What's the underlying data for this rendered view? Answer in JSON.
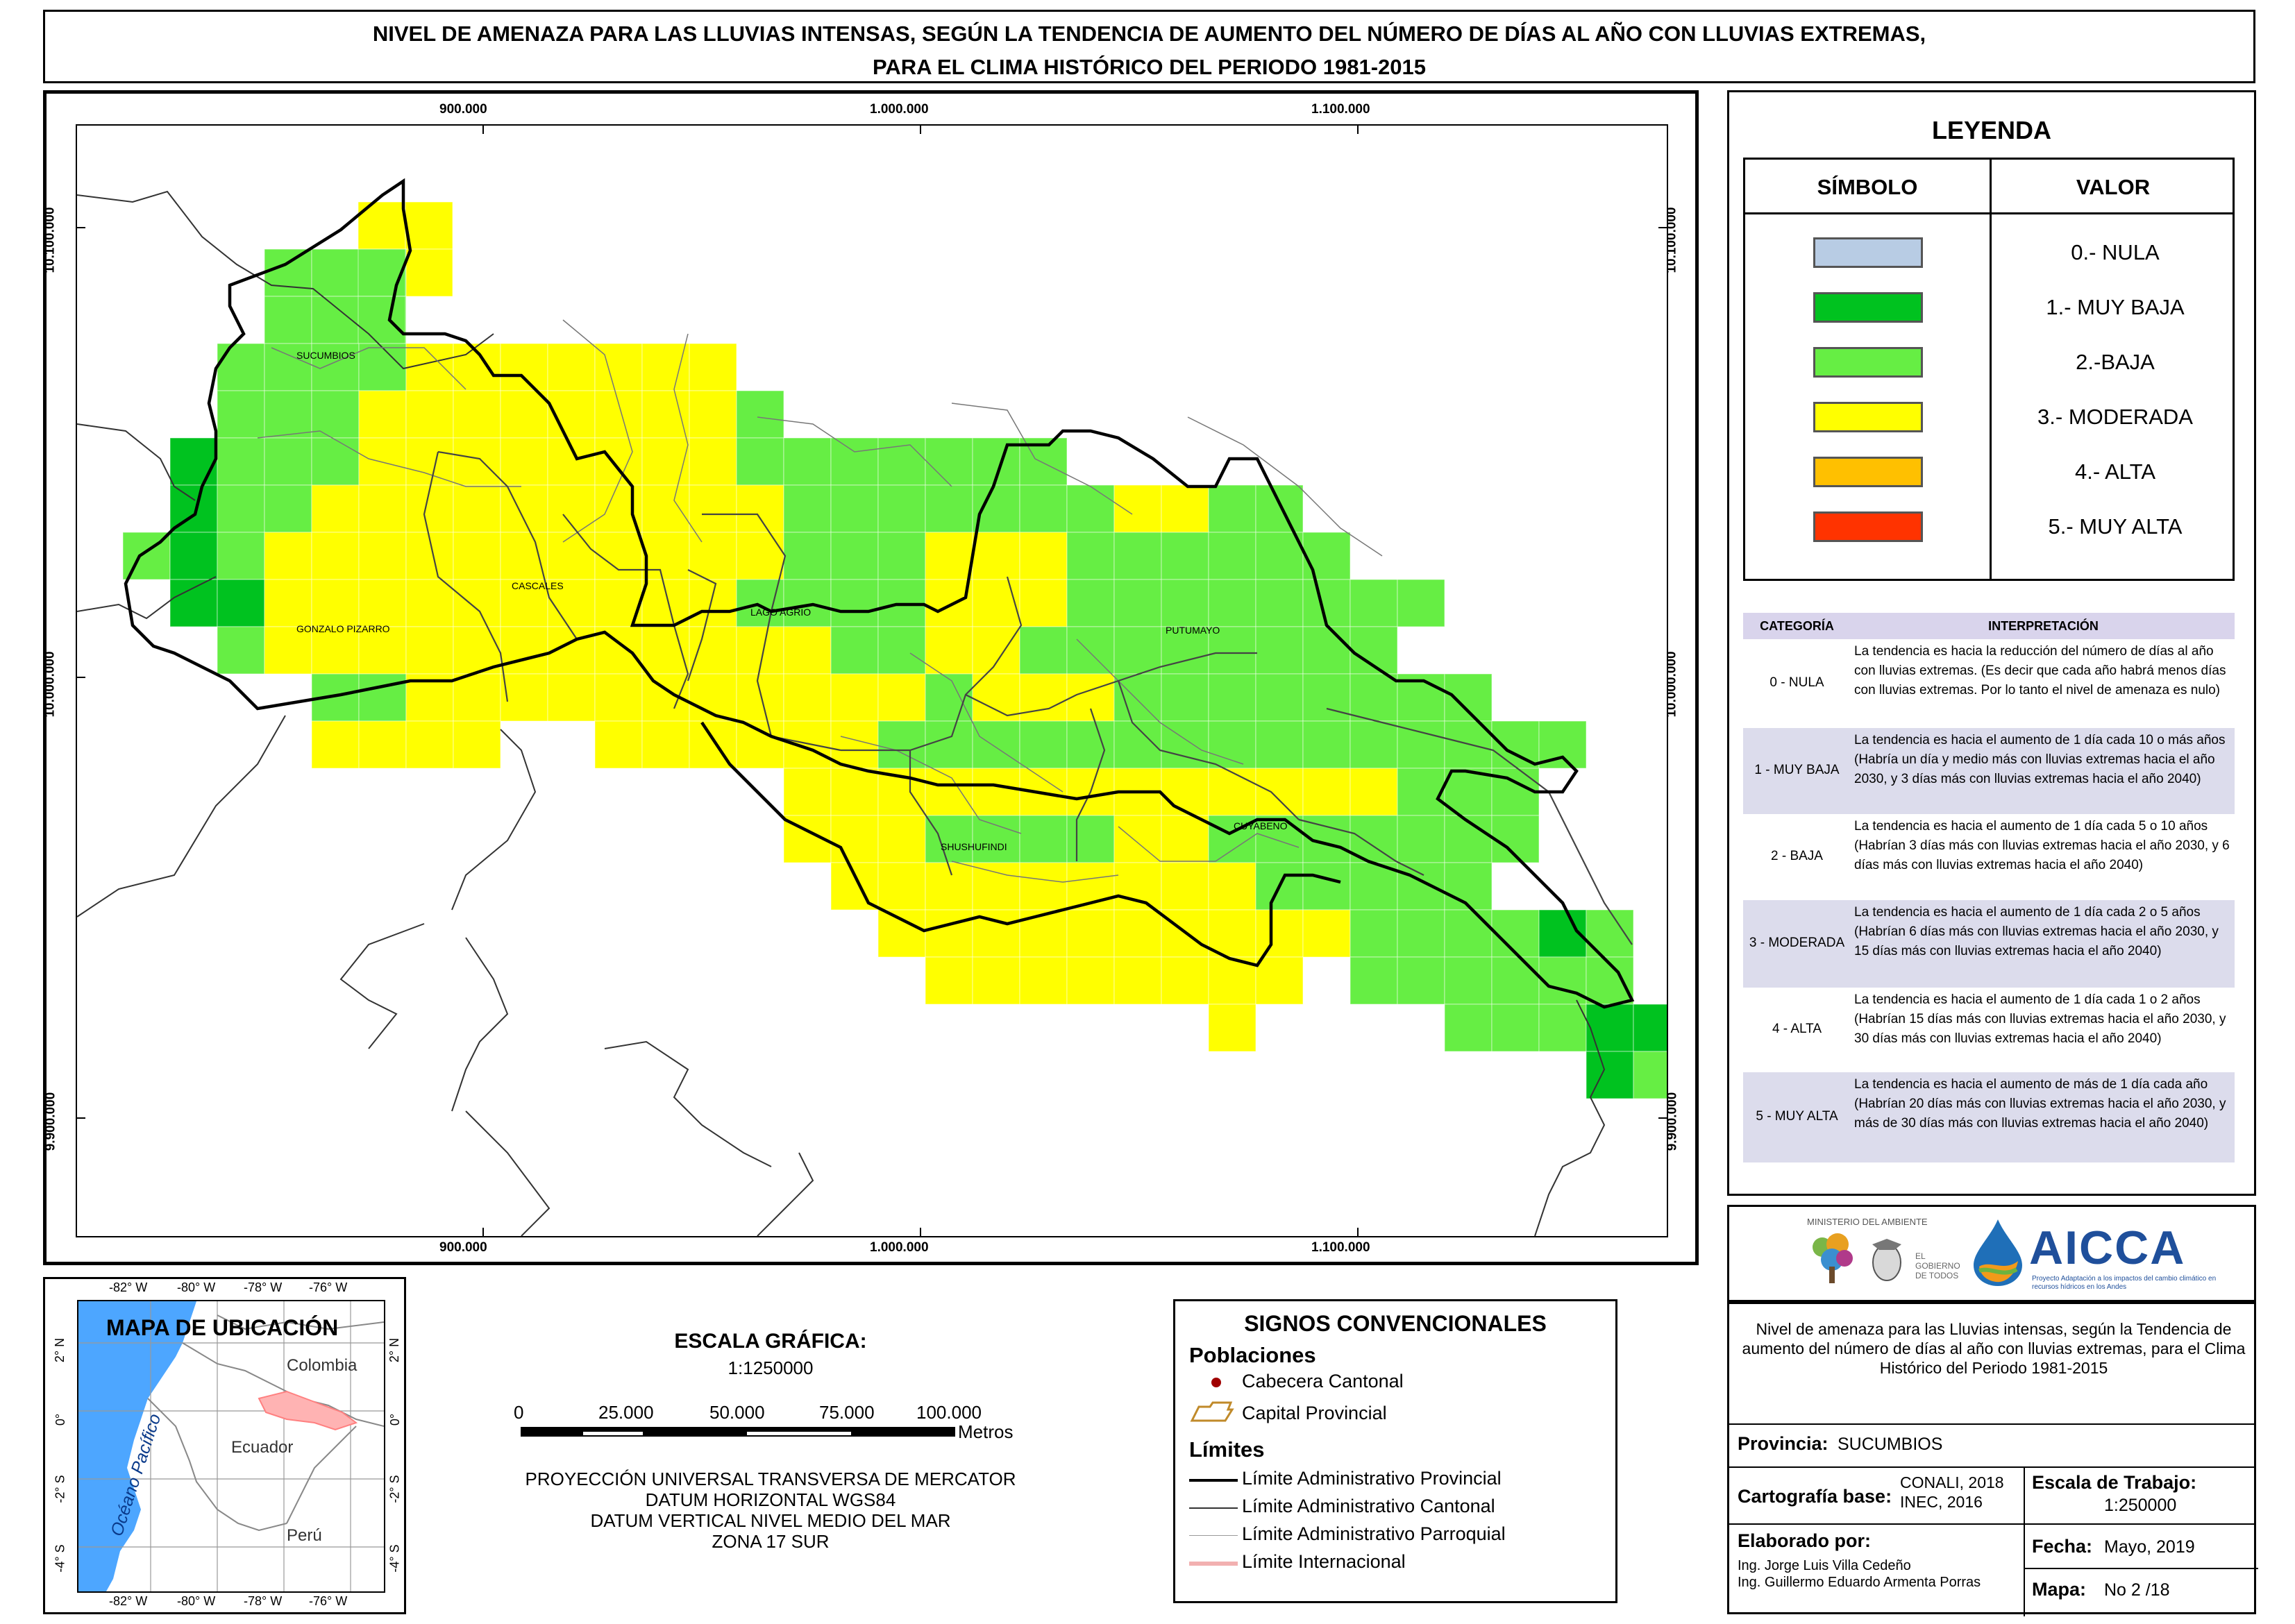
{
  "title": {
    "line1": "NIVEL DE AMENAZA PARA LAS LLUVIAS INTENSAS, SEGÚN LA TENDENCIA DE AUMENTO DEL NÚMERO DE DÍAS AL AÑO CON LLUVIAS EXTREMAS,",
    "line2": "PARA EL CLIMA HISTÓRICO DEL PERIODO 1981-2015"
  },
  "map": {
    "x_ticks": [
      "900.000",
      "1.000.000",
      "1.100.000"
    ],
    "y_ticks": [
      "10.100.000",
      "10.000.000",
      "9.900.000"
    ],
    "place_labels": [
      "SUCUMBIOS",
      "GONZALO PIZARRO",
      "CASCALES",
      "LAGO AGRIO",
      "PUTUMAYO",
      "SHUSHUFINDI",
      "CUYABENO"
    ]
  },
  "legend": {
    "title": "LEYENDA",
    "col_symbol": "SÍMBOLO",
    "col_value": "VALOR",
    "items": [
      {
        "label": "0.- NULA",
        "color": "#b8cce4"
      },
      {
        "label": "1.- MUY BAJA",
        "color": "#00c21f"
      },
      {
        "label": "2.-BAJA",
        "color": "#66ee44"
      },
      {
        "label": "3.- MODERADA",
        "color": "#ffff00"
      },
      {
        "label": "4.- ALTA",
        "color": "#ffc000"
      },
      {
        "label": "5.- MUY ALTA",
        "color": "#ff3300"
      }
    ],
    "interp_header": {
      "cat": "CATEGORÍA",
      "txt": "INTERPRETACIÓN"
    },
    "interp": [
      {
        "cat": "0 - NULA",
        "txt": "La tendencia es hacia la reducción del número de días al año con lluvias extremas. (Es decir que cada año habrá menos días con lluvias extremas. Por lo tanto el nivel de amenaza es nulo)"
      },
      {
        "cat": "1 - MUY BAJA",
        "txt": "La tendencia es hacia el aumento de 1 día cada 10 o más años (Habría un día y medio más con lluvias extremas hacia el año 2030, y 3 días más con lluvias extremas hacia el año 2040)"
      },
      {
        "cat": "2 - BAJA",
        "txt": "La tendencia es hacia el aumento de 1 día cada 5 o 10 años (Habrían 3 días más con lluvias extremas hacia el año 2030, y 6 días más con lluvias extremas hacia el año 2040)"
      },
      {
        "cat": "3 - MODERADA",
        "txt": "La tendencia es hacia el aumento de 1 día cada 2 o 5 años (Habrían 6 días más con lluvias extremas hacia el año 2030, y 15 días más con lluvias extremas hacia el año 2040)"
      },
      {
        "cat": "4 - ALTA",
        "txt": "La tendencia es hacia el aumento de 1 día cada 1 o 2 años (Habrían 15 días más con lluvias extremas hacia el año 2030, y 30 días más con lluvias extremas hacia el año 2040)"
      },
      {
        "cat": "5 - MUY ALTA",
        "txt": "La tendencia es hacia el aumento de más de 1 día cada año (Habrían 20 días más con lluvias extremas hacia el año 2030, y más de 30 días más con lluvias extremas hacia el año 2040)"
      }
    ]
  },
  "location_map": {
    "title": "MAPA DE UBICACIÓN",
    "top_ticks": [
      "-82° W",
      "-80° W",
      "-78° W",
      "-76° W"
    ],
    "bottom_ticks": [
      "-82° W",
      "-80° W",
      "-78° W",
      "-76° W"
    ],
    "side_ticks": [
      "2° N",
      "0°",
      "-2° S",
      "-4° S"
    ],
    "ocean": "Océano Pacífico",
    "countries": [
      "Colombia",
      "Ecuador",
      "Perú"
    ]
  },
  "scale": {
    "title": "ESCALA GRÁFICA:",
    "ratio": "1:1250000",
    "ticks": [
      "0",
      "25.000",
      "50.000",
      "75.000",
      "100.000"
    ],
    "unit": "Metros",
    "projection": [
      "PROYECCIÓN UNIVERSAL TRANSVERSA DE MERCATOR",
      "DATUM HORIZONTAL WGS84",
      "DATUM VERTICAL NIVEL MEDIO DEL MAR",
      "ZONA 17 SUR"
    ]
  },
  "signs": {
    "title": "SIGNOS CONVENCIONALES",
    "poblaciones": "Poblaciones",
    "cabecera": "Cabecera Cantonal",
    "capital": "Capital Provincial",
    "limites": "Límites",
    "lim_prov": "Límite Administrativo Provincial",
    "lim_cant": "Límite Administrativo Cantonal",
    "lim_parr": "Límite Administrativo Parroquial",
    "lim_int": "Límite Internacional"
  },
  "logos": {
    "ministerio": "MINISTERIO DEL AMBIENTE",
    "gobierno": "EL GOBIERNO DE TODOS",
    "aicca": "AICCA",
    "aicca_sub": "Proyecto Adaptación a los impactos del cambio climático en recursos hídricos en los Andes"
  },
  "info": {
    "description": "Nivel de amenaza para las Lluvias intensas, según la Tendencia de aumento del número de días al año con lluvias extremas, para el Clima Histórico del Periodo 1981-2015",
    "provincia_label": "Provincia:",
    "provincia": "SUCUMBIOS",
    "cartografia_label": "Cartografía base:",
    "cartografia_1": "CONALI, 2018",
    "cartografia_2": "INEC, 2016",
    "escala_label": "Escala de Trabajo:",
    "escala": "1:250000",
    "elaborado_label": "Elaborado por:",
    "autor1": "Ing. Jorge Luis Villa Cedeño",
    "autor2": "Ing. Guillermo Eduardo Armenta Porras",
    "fecha_label": "Fecha:",
    "fecha": "Mayo, 2019",
    "mapa_label": "Mapa:",
    "mapa": "No 2 /18"
  }
}
